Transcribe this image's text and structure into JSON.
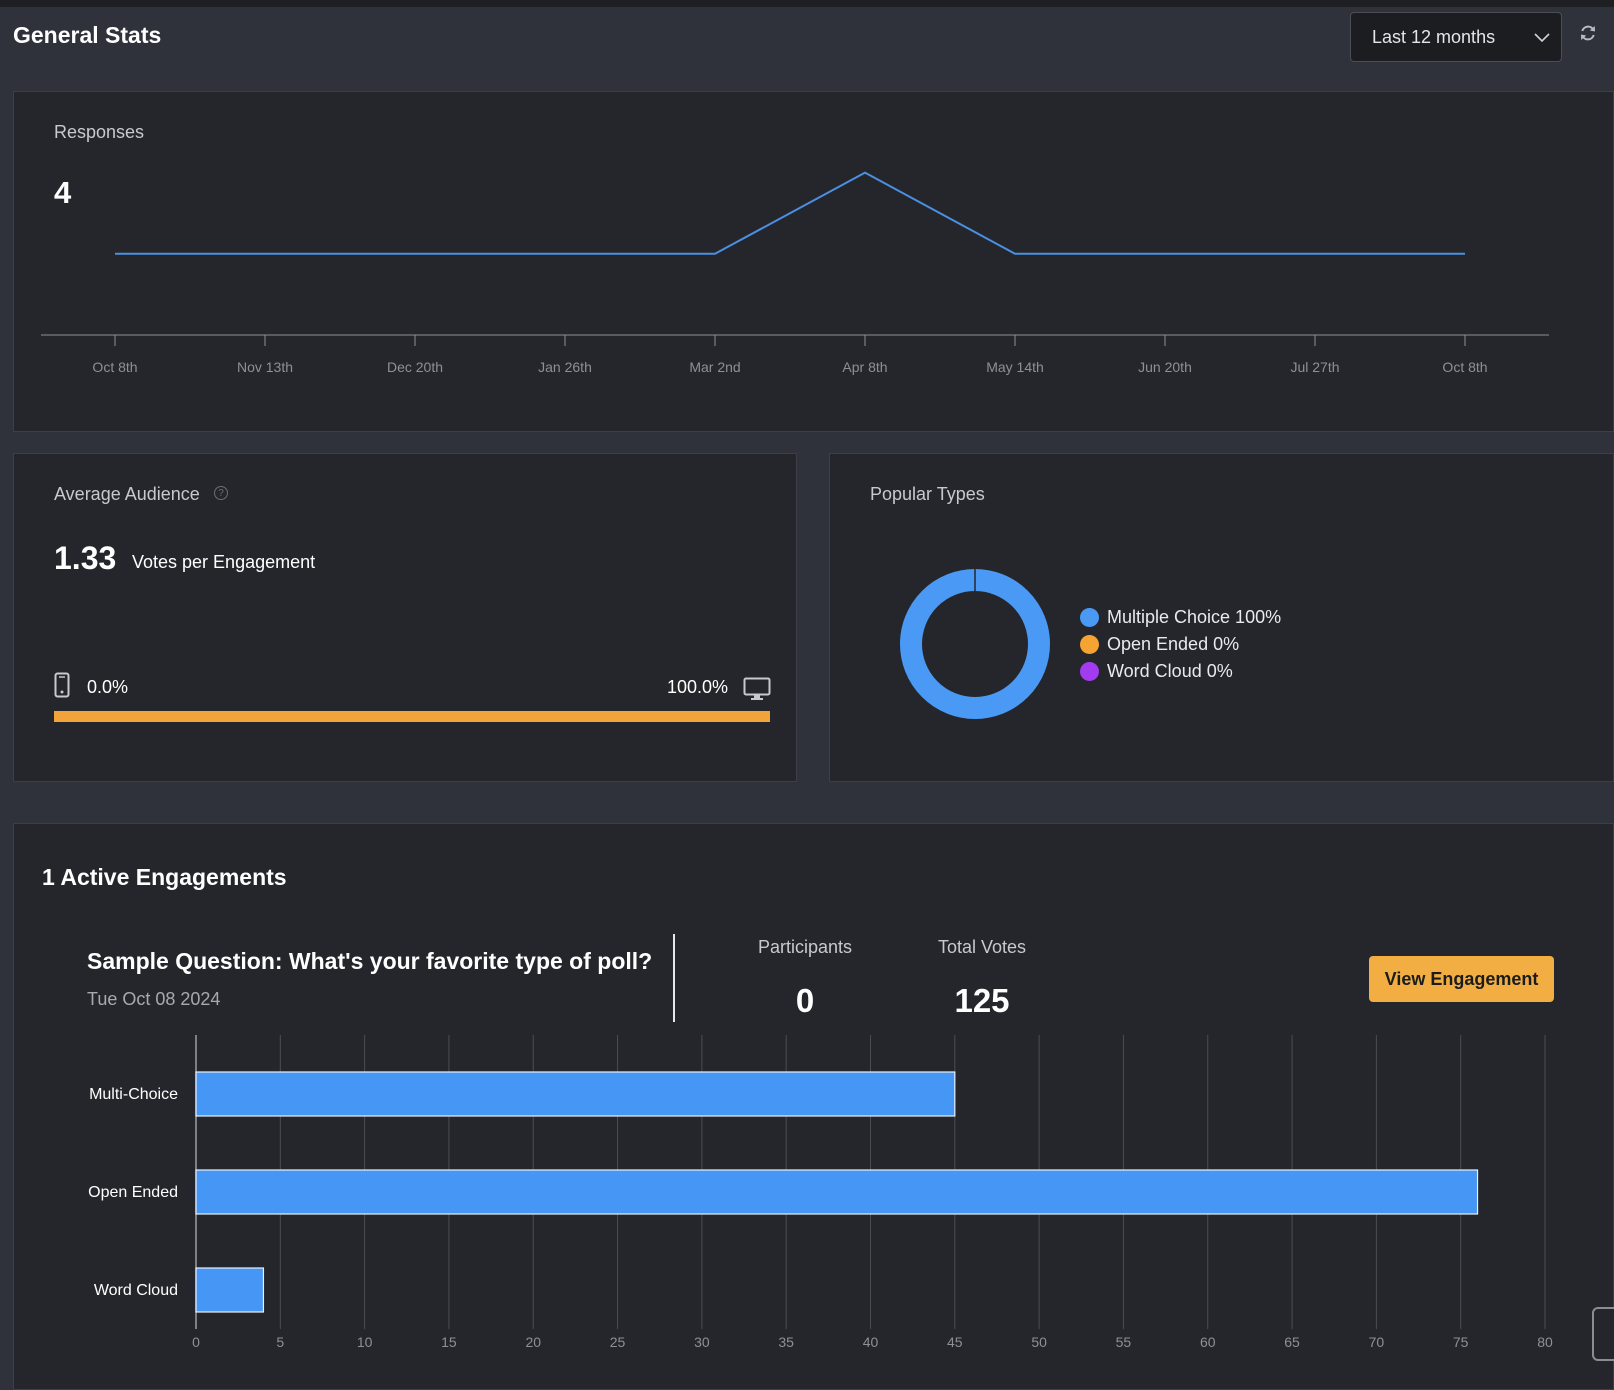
{
  "header": {
    "title": "General Stats",
    "range": "Last 12 months"
  },
  "responses": {
    "label": "Responses",
    "value": "4",
    "chart_data": {
      "type": "line",
      "x": [
        "Oct 8th",
        "Nov 13th",
        "Dec 20th",
        "Jan 26th",
        "Mar 2nd",
        "Apr 8th",
        "May 14th",
        "Jun 20th",
        "Jul 27th",
        "Oct 8th"
      ],
      "series": [
        {
          "values": [
            1,
            1,
            1,
            1,
            1,
            2,
            1,
            1,
            1,
            1
          ]
        }
      ],
      "color": "#4a90e2",
      "ylim": [
        0,
        2.5
      ]
    }
  },
  "average_audience": {
    "label": "Average Audience",
    "value": "1.33",
    "unit": "Votes per Engagement",
    "mobile_pct": "0.0%",
    "desktop_pct": "100.0%",
    "desktop_fraction": 1.0,
    "bar_color": "#f2a43a"
  },
  "popular_types": {
    "label": "Popular Types",
    "chart_data": {
      "type": "pie",
      "categories": [
        "Multiple Choice",
        "Open Ended",
        "Word Cloud"
      ],
      "values": [
        100,
        0,
        0
      ]
    },
    "legend": [
      {
        "label": "Multiple Choice 100%",
        "color": "#4a9af5"
      },
      {
        "label": "Open Ended 0%",
        "color": "#f5a332"
      },
      {
        "label": "Word Cloud 0%",
        "color": "#a33cf0"
      }
    ]
  },
  "engagements": {
    "title": "1 Active Engagements",
    "question": "Sample Question: What's your favorite type of poll?",
    "date": "Tue Oct 08 2024",
    "participants_label": "Participants",
    "participants": "0",
    "votes_label": "Total Votes",
    "votes": "125",
    "view_button": "View Engagement",
    "chart_data": {
      "type": "bar",
      "orientation": "horizontal",
      "categories": [
        "Multi-Choice",
        "Open Ended",
        "Word Cloud"
      ],
      "values": [
        45,
        76,
        4
      ],
      "xlim": [
        0,
        80
      ],
      "xticks": [
        0,
        5,
        10,
        15,
        20,
        25,
        30,
        35,
        40,
        45,
        50,
        55,
        60,
        65,
        70,
        75,
        80
      ],
      "color": "#4596f5",
      "grid": true
    }
  }
}
